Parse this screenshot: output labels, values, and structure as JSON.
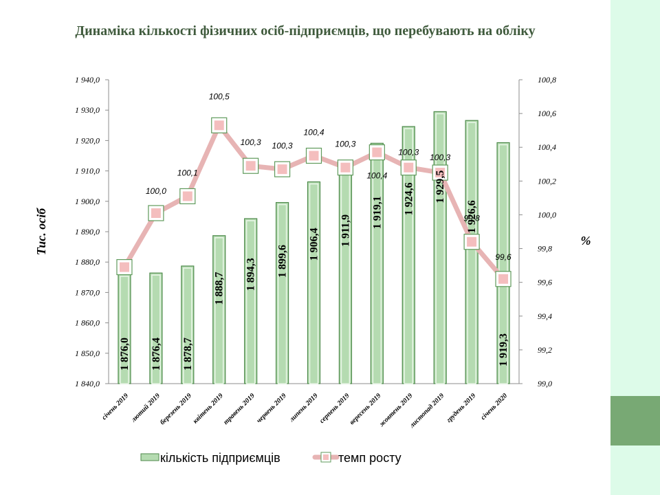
{
  "chart_data": {
    "type": "bar",
    "title": "Динаміка кількості фізичних осіб-підприємців, що перебувають на обліку",
    "categories": [
      "січень 2019",
      "лютий 2019",
      "березень 2019",
      "квітень 2019",
      "травень 2019",
      "червень 2019",
      "липень 2019",
      "серпень 2019",
      "вересень 2019",
      "жовтень 2019",
      "листопад 2019",
      "грудень 2019",
      "січень 2020"
    ],
    "series": [
      {
        "name": "кількість підприємців",
        "type": "bar",
        "axis": "left",
        "values": [
          1876.0,
          1876.4,
          1878.7,
          1888.7,
          1894.3,
          1899.6,
          1906.4,
          1911.9,
          1919.1,
          1924.6,
          1929.5,
          1926.6,
          1919.3
        ],
        "labels": [
          "1 876,0",
          "1 876,4",
          "1 878,7",
          "1 888,7",
          "1 894,3",
          "1 899,6",
          "1 906,4",
          "1 911,9",
          "1 919,1",
          "1 924,6",
          "1 929,5",
          "1 926,6",
          "1 919,3"
        ],
        "color": "#b5dbb1"
      },
      {
        "name": "темп росту",
        "type": "line",
        "axis": "right",
        "values": [
          99.7,
          100.0,
          100.1,
          100.5,
          100.3,
          100.3,
          100.4,
          100.3,
          100.4,
          100.3,
          100.3,
          99.8,
          99.6
        ],
        "plot_values": [
          99.69,
          100.01,
          100.11,
          100.53,
          100.29,
          100.27,
          100.35,
          100.28,
          100.37,
          100.28,
          100.25,
          99.84,
          99.62
        ],
        "labels": [
          "",
          "100,0",
          "100,1",
          "100,5",
          "100,3",
          "100,3",
          "100,4",
          "100,3",
          "100,4",
          "100,3",
          "100,3",
          "99,8",
          "99,6"
        ],
        "color": "#e7b4b4",
        "marker_color": "#f4bebe"
      }
    ],
    "y_left": {
      "label": "Тис. осіб",
      "min": 1840,
      "max": 1940,
      "step": 10,
      "ticks": [
        "1 840,0",
        "1 850,0",
        "1 860,0",
        "1 870,0",
        "1 880,0",
        "1 890,0",
        "1 900,0",
        "1 910,0",
        "1 920,0",
        "1 930,0",
        "1 940,0"
      ]
    },
    "y_right": {
      "label": "%",
      "min": 99.0,
      "max": 100.8,
      "step": 0.2,
      "ticks": [
        "99,0",
        "99,2",
        "99,4",
        "99,6",
        "99,8",
        "100,0",
        "100,2",
        "100,4",
        "100,6",
        "100,8"
      ]
    },
    "grid": false,
    "legend": "bottom"
  }
}
